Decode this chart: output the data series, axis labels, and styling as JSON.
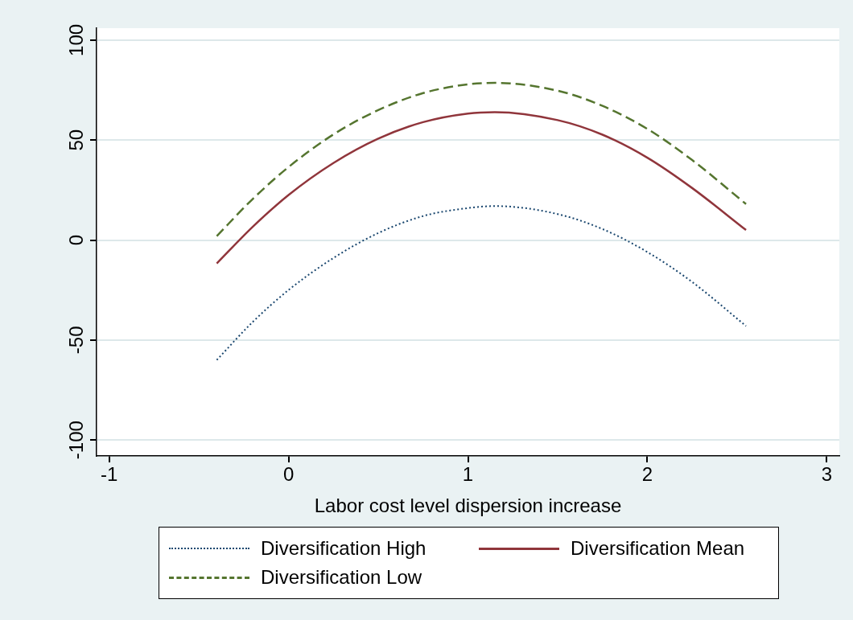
{
  "chart_data": {
    "type": "line",
    "xlabel": "Labor cost level dispersion increase",
    "xlim": [
      -1.07,
      3.07
    ],
    "ylim": [
      -108,
      106
    ],
    "xticks": [
      -1,
      0,
      1,
      2,
      3
    ],
    "yticks": [
      -100,
      -50,
      0,
      50,
      100
    ],
    "grid": "y",
    "legend": "bottom",
    "x": [
      -0.4,
      -0.2,
      0,
      0.25,
      0.5,
      0.75,
      1,
      1.15,
      1.5,
      1.75,
      2,
      2.25,
      2.55
    ],
    "series": [
      {
        "name": "Diversification High",
        "color": "#1a476f",
        "line_style": "dotted",
        "values": [
          -60,
          -41,
          -25,
          -9,
          3.5,
          12,
          16,
          17,
          13,
          5.5,
          -6,
          -21,
          -43
        ]
      },
      {
        "name": "Diversification Mean",
        "color": "#90353b",
        "line_style": "solid",
        "values": [
          -11.7,
          6.6,
          22.5,
          38.5,
          50.7,
          59,
          63.3,
          64,
          60,
          52.7,
          41.2,
          26,
          5
        ]
      },
      {
        "name": "Diversification Low",
        "color": "#55752f",
        "line_style": "dashed",
        "values": [
          2,
          20.5,
          36.5,
          52.8,
          65,
          73.5,
          77.9,
          78.6,
          74.7,
          67.1,
          55.6,
          40,
          18
        ]
      }
    ]
  }
}
